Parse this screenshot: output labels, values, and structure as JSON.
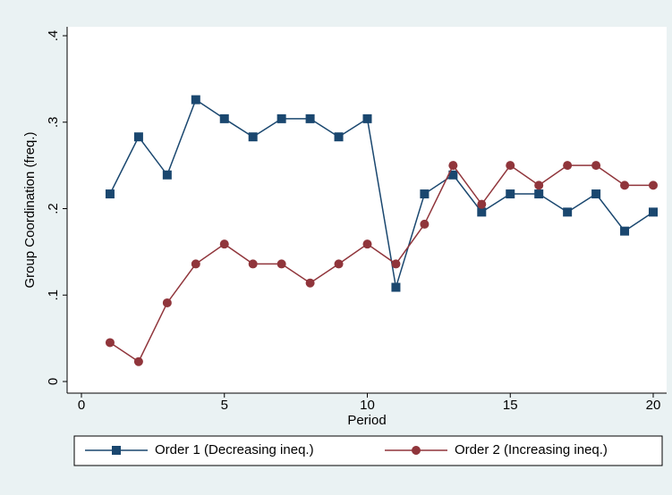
{
  "chart_data": {
    "type": "line",
    "x_label": "Period",
    "y_label": "Group Coordination (freq.)",
    "x": [
      1,
      2,
      3,
      4,
      5,
      6,
      7,
      8,
      9,
      10,
      11,
      12,
      13,
      14,
      15,
      16,
      17,
      18,
      19,
      20
    ],
    "series": [
      {
        "name": "Order 1 (Decreasing ineq.)",
        "color": "#1a476f",
        "marker": "square",
        "values": [
          0.217,
          0.283,
          0.239,
          0.326,
          0.304,
          0.283,
          0.304,
          0.304,
          0.283,
          0.304,
          0.109,
          0.217,
          0.239,
          0.196,
          0.217,
          0.217,
          0.196,
          0.217,
          0.174,
          0.196
        ]
      },
      {
        "name": "Order 2 (Increasing ineq.)",
        "color": "#90353b",
        "marker": "circle",
        "values": [
          0.045,
          0.023,
          0.091,
          0.136,
          0.159,
          0.136,
          0.136,
          0.114,
          0.136,
          0.159,
          0.136,
          0.182,
          0.25,
          0.205,
          0.25,
          0.227,
          0.25,
          0.25,
          0.227,
          0.227
        ]
      }
    ],
    "xlim": [
      0,
      20
    ],
    "xticks": [
      0,
      5,
      10,
      15,
      20
    ],
    "ylim": [
      0,
      0.4
    ],
    "yticks": [
      0,
      {
        "value": 0.1,
        "label": ".1"
      },
      {
        "value": 0.2,
        "label": ".2"
      },
      {
        "value": 0.3,
        "label": ".3"
      },
      {
        "value": 0.4,
        "label": ".4"
      }
    ],
    "grid": false,
    "legend": "bottom"
  }
}
